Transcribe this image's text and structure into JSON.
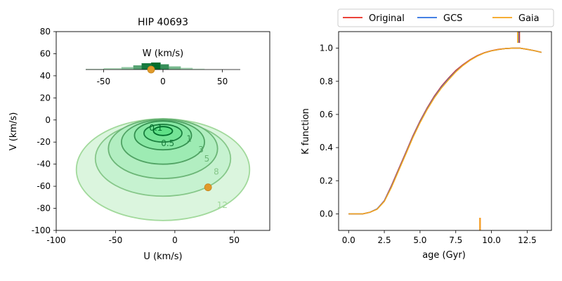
{
  "chart_data": [
    {
      "type": "contour",
      "title": "HIP 40693",
      "xlabel": "U (km/s)",
      "ylabel": "V (km/s)",
      "xlim": [
        -100,
        80
      ],
      "ylim": [
        -100,
        80
      ],
      "xticks": [
        -100,
        -50,
        0,
        50
      ],
      "yticks": [
        -100,
        -80,
        -60,
        -40,
        -20,
        0,
        20,
        40,
        60,
        80
      ],
      "colors": {
        "fill_outer": "#dbf5de",
        "fill_inner": "#5fe087",
        "line_outer": "#a1d99b",
        "line_inner": "#006d2c",
        "star_marker": "#e09a2a"
      },
      "contours": [
        {
          "label": "12",
          "center": [
            -10,
            -45
          ],
          "radii": [
            73,
            46
          ]
        },
        {
          "label": "8",
          "center": [
            -10,
            -35
          ],
          "radii": [
            57,
            34
          ]
        },
        {
          "label": "5",
          "center": [
            -10,
            -26
          ],
          "radii": [
            46,
            27
          ]
        },
        {
          "label": "3",
          "center": [
            -10,
            -20
          ],
          "radii": [
            35,
            20
          ]
        },
        {
          "label": "1",
          "center": [
            -10,
            -14
          ],
          "radii": [
            24,
            13
          ]
        },
        {
          "label": "0.5",
          "center": [
            -10,
            -12
          ],
          "radii": [
            16,
            8
          ]
        },
        {
          "label": "0.1",
          "center": [
            -10,
            -10
          ],
          "radii": [
            8,
            4
          ]
        }
      ],
      "contour_label_positions": [
        {
          "label": "0.1",
          "at": [
            -16,
            -7
          ]
        },
        {
          "label": "0.5",
          "at": [
            -6,
            -21
          ]
        },
        {
          "label": "1",
          "at": [
            12,
            -17
          ]
        },
        {
          "label": "3",
          "at": [
            22,
            -27
          ]
        },
        {
          "label": "5",
          "at": [
            27,
            -35
          ]
        },
        {
          "label": "8",
          "at": [
            35,
            -47
          ]
        },
        {
          "label": "12",
          "at": [
            40,
            -77
          ]
        }
      ],
      "star": {
        "U": 28,
        "V": -61
      },
      "inset": {
        "title": "W (km/s)",
        "xlim": [
          -65,
          65
        ],
        "xticks": [
          -50,
          0,
          50
        ],
        "star_W": -10,
        "histogram_bins": [
          {
            "from": -65,
            "to": -50,
            "level": 0.1
          },
          {
            "from": -50,
            "to": -35,
            "level": 0.2
          },
          {
            "from": -35,
            "to": -25,
            "level": 0.35
          },
          {
            "from": -25,
            "to": -18,
            "level": 0.6
          },
          {
            "from": -18,
            "to": -10,
            "level": 0.9
          },
          {
            "from": -10,
            "to": -2,
            "level": 1.0
          },
          {
            "from": -2,
            "to": 5,
            "level": 0.75
          },
          {
            "from": 5,
            "to": 15,
            "level": 0.45
          },
          {
            "from": 15,
            "to": 25,
            "level": 0.25
          },
          {
            "from": 25,
            "to": 35,
            "level": 0.12
          },
          {
            "from": 35,
            "to": 50,
            "level": 0.05
          }
        ]
      }
    },
    {
      "type": "line",
      "title": "",
      "xlabel": "age (Gyr)",
      "ylabel": "K function",
      "xlim": [
        -0.7,
        14.2
      ],
      "ylim": [
        -0.1,
        1.1
      ],
      "xticks": [
        "0.0",
        "2.5",
        "5.0",
        "7.5",
        "10.0",
        "12.5"
      ],
      "xtick_values": [
        0,
        2.5,
        5,
        7.5,
        10,
        12.5
      ],
      "yticks": [
        "0.0",
        "0.2",
        "0.4",
        "0.6",
        "0.8",
        "1.0"
      ],
      "ytick_values": [
        0,
        0.2,
        0.4,
        0.6,
        0.8,
        1.0
      ],
      "legend_position": "top",
      "series": [
        {
          "name": "Original",
          "color": "#e8281e",
          "x": [
            0,
            0.5,
            1.0,
            1.5,
            2.0,
            2.5,
            3.0,
            3.5,
            4.0,
            4.5,
            5.0,
            5.5,
            6.0,
            6.5,
            7.0,
            7.5,
            8.0,
            8.5,
            9.0,
            9.5,
            10.0,
            10.5,
            11.0,
            11.5,
            12.0,
            12.5,
            13.0,
            13.5
          ],
          "y": [
            0.0,
            0.0,
            0.0,
            0.01,
            0.03,
            0.08,
            0.17,
            0.27,
            0.37,
            0.47,
            0.56,
            0.64,
            0.71,
            0.77,
            0.82,
            0.865,
            0.9,
            0.93,
            0.955,
            0.973,
            0.985,
            0.993,
            0.998,
            1.0,
            1.0,
            0.993,
            0.985,
            0.975
          ]
        },
        {
          "name": "GCS",
          "color": "#2c6fe0",
          "x": [
            0,
            0.5,
            1.0,
            1.5,
            2.0,
            2.5,
            3.0,
            3.5,
            4.0,
            4.5,
            5.0,
            5.5,
            6.0,
            6.5,
            7.0,
            7.5,
            8.0,
            8.5,
            9.0,
            9.5,
            10.0,
            10.5,
            11.0,
            11.5,
            12.0,
            12.5,
            13.0,
            13.5
          ],
          "y": [
            0.0,
            0.0,
            0.0,
            0.01,
            0.03,
            0.078,
            0.165,
            0.265,
            0.365,
            0.465,
            0.555,
            0.635,
            0.705,
            0.765,
            0.815,
            0.86,
            0.897,
            0.928,
            0.953,
            0.972,
            0.984,
            0.992,
            0.998,
            1.0,
            1.0,
            0.993,
            0.985,
            0.975
          ]
        },
        {
          "name": "Gaia",
          "color": "#f5a31a",
          "x": [
            0,
            0.5,
            1.0,
            1.5,
            2.0,
            2.5,
            3.0,
            3.5,
            4.0,
            4.5,
            5.0,
            5.5,
            6.0,
            6.5,
            7.0,
            7.5,
            8.0,
            8.5,
            9.0,
            9.5,
            10.0,
            10.5,
            11.0,
            11.5,
            12.0,
            12.5,
            13.0,
            13.5
          ],
          "y": [
            0.0,
            0.0,
            0.0,
            0.01,
            0.028,
            0.075,
            0.16,
            0.26,
            0.36,
            0.46,
            0.55,
            0.63,
            0.7,
            0.76,
            0.81,
            0.857,
            0.895,
            0.927,
            0.952,
            0.971,
            0.984,
            0.992,
            0.998,
            1.0,
            1.0,
            0.993,
            0.985,
            0.975
          ]
        }
      ],
      "age_markers": [
        {
          "series": "Original",
          "x": 11.95,
          "edge": "top"
        },
        {
          "series": "GCS",
          "x": 11.9,
          "edge": "top"
        },
        {
          "series": "Gaia",
          "x": 11.85,
          "edge": "top"
        },
        {
          "series": "Original",
          "x": 9.2,
          "edge": "bottom"
        },
        {
          "series": "Gaia",
          "x": 9.2,
          "edge": "bottom"
        }
      ]
    }
  ]
}
